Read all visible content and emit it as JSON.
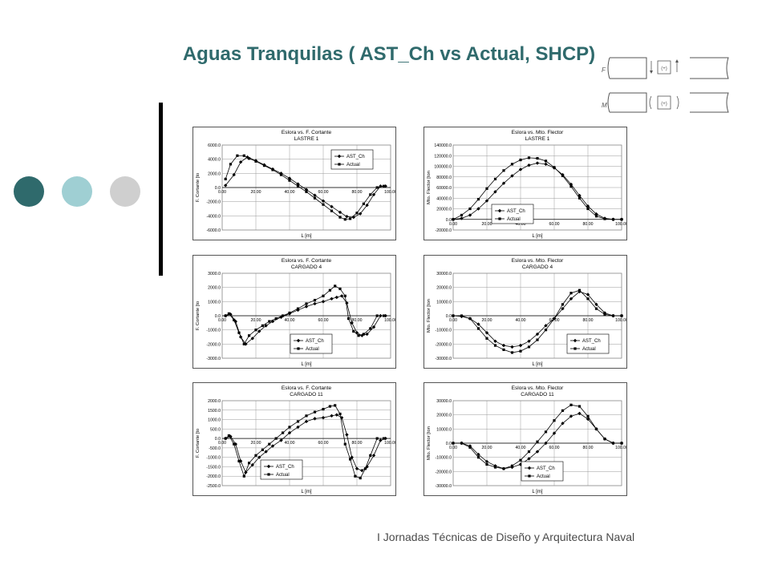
{
  "page": {
    "title": "Aguas Tranquilas ( AST_Ch vs Actual, SHCP)",
    "footer": "I Jornadas Técnicas de Diseño y Arquitectura Naval",
    "colors": {
      "title": "#2f6a6c",
      "dot1": "#2f6a6c",
      "dot2": "#9fcfd3",
      "dot3": "#cfcfcf"
    }
  },
  "sketch": {
    "label_top": "F",
    "label_bottom": "M",
    "op": "(+)"
  },
  "chart_data": [
    {
      "type": "line",
      "title": "Eslora vs. F. Cortante",
      "subtitle": "LASTRE 1",
      "xlabel": "L [m]",
      "ylabel": "F. Cortante [to",
      "xlim": [
        0,
        100
      ],
      "xticks": [
        "0.00",
        "20.00",
        "40.00",
        "60.00",
        "80.00",
        "100.00"
      ],
      "ylim": [
        -6000,
        6000
      ],
      "yticks": [
        "6000.0",
        "4000.0",
        "2000.0",
        "0.0",
        "-2000.0",
        "-4000.0",
        "-6000.0"
      ],
      "legend_position": "top-right",
      "grid": true,
      "series": [
        {
          "name": "AST_Ch",
          "marker": "diamond",
          "x": [
            2,
            7,
            11,
            15,
            20,
            25,
            30,
            35,
            40,
            45,
            50,
            55,
            60,
            65,
            70,
            74,
            78,
            82,
            86,
            90,
            94,
            97
          ],
          "values": [
            300,
            1800,
            3600,
            4300,
            3800,
            3200,
            2600,
            2000,
            1300,
            500,
            -300,
            -1100,
            -1900,
            -2700,
            -3500,
            -4100,
            -4200,
            -3700,
            -2500,
            -1000,
            200,
            200
          ]
        },
        {
          "name": "Actual",
          "marker": "square",
          "x": [
            2,
            5,
            9,
            13,
            16,
            20,
            25,
            30,
            35,
            40,
            45,
            50,
            55,
            60,
            65,
            70,
            73,
            76,
            80,
            84,
            88,
            92,
            96
          ],
          "values": [
            1200,
            3300,
            4500,
            4500,
            4100,
            3700,
            3100,
            2500,
            1800,
            1000,
            200,
            -600,
            -1500,
            -2400,
            -3300,
            -4200,
            -4500,
            -4400,
            -3600,
            -2300,
            -1000,
            0,
            200
          ]
        }
      ]
    },
    {
      "type": "line",
      "title": "Eslora vs. Mto. Flector",
      "subtitle": "LASTRE 1",
      "xlabel": "L [m]",
      "ylabel": "Mto. Flector [ton",
      "xlim": [
        0,
        100
      ],
      "xticks": [
        "0.00",
        "20.00",
        "40.00",
        "60.00",
        "80.00",
        "100.00"
      ],
      "ylim": [
        -20000,
        140000
      ],
      "yticks": [
        "140000.0",
        "120000.0",
        "100000.0",
        "80000.0",
        "60000.0",
        "40000.0",
        "20000.0",
        "0.0",
        "-20000.0"
      ],
      "legend_position": "bottom-left",
      "grid": true,
      "series": [
        {
          "name": "AST_Ch",
          "marker": "diamond",
          "x": [
            0,
            5,
            10,
            15,
            20,
            25,
            30,
            35,
            40,
            45,
            50,
            55,
            60,
            65,
            70,
            75,
            80,
            85,
            90,
            95,
            100
          ],
          "values": [
            0,
            2000,
            8000,
            20000,
            35000,
            52000,
            68000,
            82000,
            94000,
            102000,
            106000,
            104000,
            97000,
            84000,
            66000,
            45000,
            25000,
            10000,
            2000,
            0,
            0
          ]
        },
        {
          "name": "Actual",
          "marker": "square",
          "x": [
            0,
            5,
            10,
            15,
            20,
            25,
            30,
            35,
            40,
            45,
            50,
            55,
            60,
            65,
            70,
            75,
            80,
            85,
            90,
            95,
            100
          ],
          "values": [
            0,
            8000,
            20000,
            38000,
            58000,
            76000,
            92000,
            104000,
            112000,
            116000,
            115000,
            110000,
            98000,
            82000,
            62000,
            40000,
            20000,
            6000,
            1000,
            0,
            0
          ]
        }
      ]
    },
    {
      "type": "line",
      "title": "Eslora vs. F. Cortante",
      "subtitle": "CARGADO 4",
      "xlabel": "L [m]",
      "ylabel": "F. Cortante [to",
      "xlim": [
        0,
        100
      ],
      "xticks": [
        "0.00",
        "20.00",
        "40.00",
        "60.00",
        "80.00",
        "100.00"
      ],
      "ylim": [
        -3000,
        3000
      ],
      "yticks": [
        "3000.0",
        "2000.0",
        "1000.0",
        "0.0",
        "-1000.0",
        "-2000.0",
        "-3000.0"
      ],
      "legend_position": "bottom-center",
      "grid": true,
      "series": [
        {
          "name": "AST_Ch",
          "marker": "diamond",
          "x": [
            2,
            5,
            8,
            11,
            14,
            18,
            22,
            26,
            30,
            35,
            40,
            45,
            50,
            55,
            60,
            65,
            68,
            71,
            74,
            77,
            80,
            83,
            86,
            90,
            94,
            97
          ],
          "values": [
            0,
            100,
            -400,
            -1500,
            -2000,
            -1600,
            -1100,
            -700,
            -400,
            -100,
            150,
            400,
            650,
            850,
            1000,
            1200,
            1300,
            1400,
            900,
            -500,
            -1200,
            -1400,
            -1300,
            -800,
            0,
            0
          ]
        },
        {
          "name": "Actual",
          "marker": "square",
          "x": [
            2,
            4,
            7,
            10,
            13,
            16,
            20,
            24,
            28,
            32,
            36,
            40,
            45,
            50,
            55,
            60,
            64,
            67,
            70,
            73,
            75,
            78,
            81,
            84,
            88,
            92,
            96
          ],
          "values": [
            0,
            150,
            -300,
            -1200,
            -2000,
            -1400,
            -1000,
            -700,
            -400,
            -200,
            0,
            200,
            500,
            850,
            1100,
            1400,
            1800,
            2100,
            1900,
            1400,
            -200,
            -1100,
            -1400,
            -1300,
            -900,
            0,
            0
          ]
        }
      ]
    },
    {
      "type": "line",
      "title": "Eslora vs. Mto. Flector",
      "subtitle": "CARGADO 4",
      "xlabel": "L [m]",
      "ylabel": "Mto. Flector [ton",
      "xlim": [
        0,
        100
      ],
      "xticks": [
        "0.00",
        "20.00",
        "40.00",
        "60.00",
        "80.00",
        "100.00"
      ],
      "ylim": [
        -30000,
        30000
      ],
      "yticks": [
        "30000.0",
        "20000.0",
        "10000.0",
        "0.0",
        "-10000.0",
        "-20000.0",
        "-30000.0"
      ],
      "legend_position": "bottom-right",
      "grid": true,
      "series": [
        {
          "name": "AST_Ch",
          "marker": "diamond",
          "x": [
            0,
            5,
            10,
            15,
            20,
            25,
            30,
            35,
            40,
            45,
            50,
            55,
            60,
            65,
            70,
            75,
            80,
            85,
            90,
            95,
            100
          ],
          "values": [
            0,
            -500,
            -2000,
            -6000,
            -12000,
            -18000,
            -21000,
            -22000,
            -21000,
            -18000,
            -13000,
            -7000,
            -2000,
            5000,
            12000,
            17000,
            15000,
            8000,
            2000,
            0,
            0
          ]
        },
        {
          "name": "Actual",
          "marker": "square",
          "x": [
            0,
            5,
            10,
            15,
            20,
            25,
            30,
            35,
            40,
            45,
            50,
            55,
            60,
            65,
            70,
            75,
            80,
            85,
            90,
            95,
            100
          ],
          "values": [
            0,
            0,
            -2000,
            -9000,
            -16000,
            -21000,
            -24000,
            -26000,
            -25000,
            -22000,
            -17000,
            -10000,
            -2000,
            8000,
            16000,
            18000,
            12000,
            5000,
            1000,
            0,
            0
          ]
        }
      ]
    },
    {
      "type": "line",
      "title": "Eslora vs. F. Cortante",
      "subtitle": "CARGADO 11",
      "xlabel": "L [m]",
      "ylabel": "F. Cortante [to",
      "xlim": [
        0,
        100
      ],
      "xticks": [
        "0.00",
        "20.00",
        "40.00",
        "60.00",
        "80.00",
        "100.00"
      ],
      "ylim": [
        -2500,
        2000
      ],
      "yticks": [
        "2000.0",
        "1500.0",
        "1000.0",
        "500.0",
        "0.0",
        "-500.0",
        "-1000.0",
        "-1500.0",
        "-2000.0",
        "-2500.0"
      ],
      "legend_position": "bottom-left",
      "grid": true,
      "series": [
        {
          "name": "AST_Ch",
          "marker": "diamond",
          "x": [
            2,
            5,
            8,
            11,
            14,
            18,
            22,
            26,
            30,
            35,
            40,
            45,
            50,
            55,
            60,
            65,
            68,
            71,
            74,
            77,
            80,
            83,
            86,
            90,
            94,
            97
          ],
          "values": [
            0,
            100,
            -300,
            -1200,
            -1800,
            -1400,
            -1000,
            -700,
            -400,
            -100,
            300,
            600,
            900,
            1050,
            1100,
            1200,
            1250,
            1100,
            200,
            -1000,
            -1600,
            -1700,
            -1500,
            -900,
            -100,
            0
          ]
        },
        {
          "name": "Actual",
          "marker": "square",
          "x": [
            2,
            4,
            7,
            10,
            13,
            16,
            20,
            24,
            28,
            32,
            36,
            40,
            45,
            50,
            55,
            60,
            64,
            67,
            70,
            73,
            76,
            79,
            82,
            85,
            88,
            92,
            96
          ],
          "values": [
            0,
            150,
            -300,
            -1200,
            -2000,
            -1300,
            -900,
            -600,
            -300,
            0,
            300,
            600,
            900,
            1200,
            1400,
            1550,
            1700,
            1750,
            1300,
            -300,
            -1100,
            -2000,
            -2100,
            -1600,
            -900,
            0,
            0
          ]
        }
      ]
    },
    {
      "type": "line",
      "title": "Eslora vs. Mto. Flector",
      "subtitle": "CARGADO 11",
      "xlabel": "L [m]",
      "ylabel": "Mto. Flector [ton",
      "xlim": [
        0,
        100
      ],
      "xticks": [
        "0.00",
        "20.00",
        "40.00",
        "60.00",
        "80.00",
        "100.00"
      ],
      "ylim": [
        -30000,
        30000
      ],
      "yticks": [
        "30000.0",
        "20000.0",
        "10000.0",
        "0.0",
        "-10000.0",
        "-20000.0",
        "-30000.0"
      ],
      "legend_position": "bottom-center",
      "grid": true,
      "series": [
        {
          "name": "AST_Ch",
          "marker": "diamond",
          "x": [
            0,
            5,
            10,
            15,
            20,
            25,
            30,
            35,
            40,
            45,
            50,
            55,
            60,
            65,
            70,
            75,
            80,
            85,
            90,
            95,
            100
          ],
          "values": [
            0,
            0,
            -2000,
            -8000,
            -13000,
            -16000,
            -18000,
            -17000,
            -15000,
            -11000,
            -6000,
            0,
            7000,
            14000,
            19000,
            21000,
            17000,
            10000,
            3000,
            0,
            0
          ]
        },
        {
          "name": "Actual",
          "marker": "square",
          "x": [
            0,
            5,
            10,
            15,
            20,
            25,
            30,
            35,
            40,
            45,
            50,
            55,
            60,
            65,
            70,
            75,
            80,
            85,
            90,
            95,
            100
          ],
          "values": [
            0,
            0,
            -3000,
            -10000,
            -15000,
            -17000,
            -18000,
            -16000,
            -12000,
            -6000,
            1000,
            8000,
            16000,
            23000,
            27000,
            26000,
            19000,
            10000,
            3000,
            0,
            0
          ]
        }
      ]
    }
  ]
}
